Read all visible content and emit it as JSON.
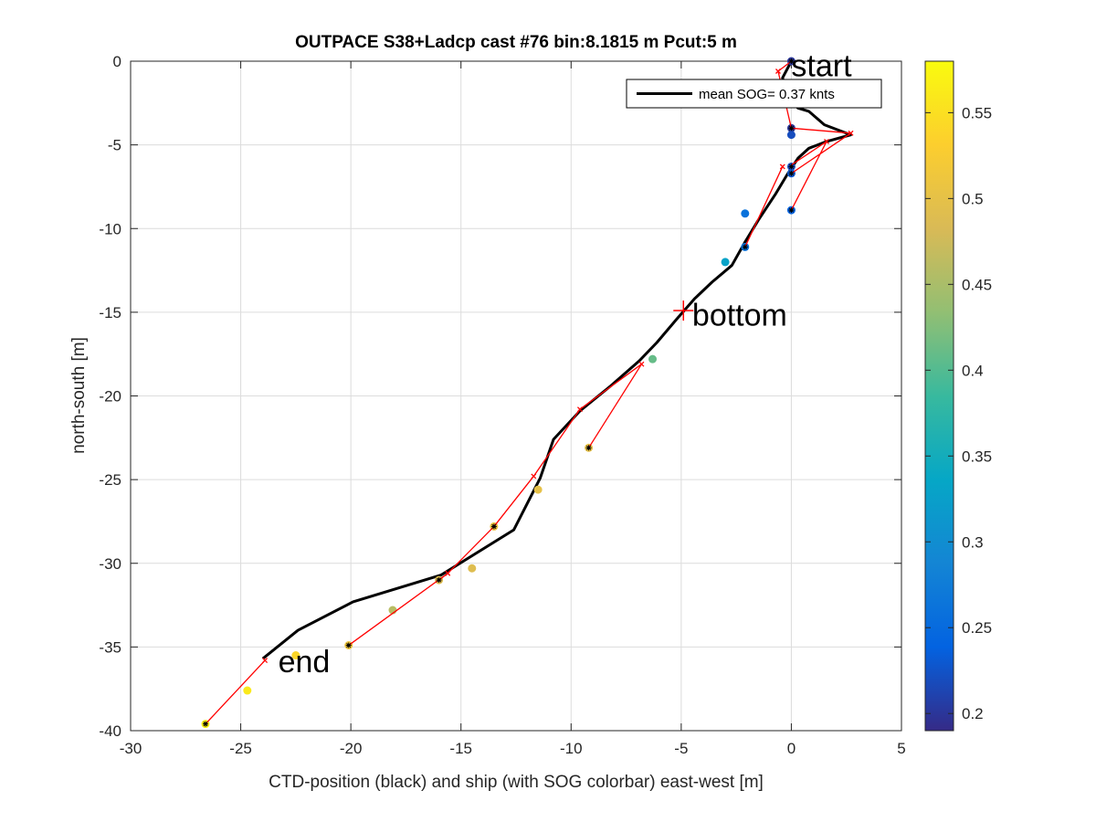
{
  "chart_data": {
    "type": "scatter",
    "title": "OUTPACE S38+Ladcp cast #76 bin:8.1815 m  Pcut:5 m",
    "xlabel": "CTD-position (black) and ship (with SOG colorbar) east-west [m]",
    "ylabel": "north-south [m]",
    "xlim": [
      -30,
      5
    ],
    "ylim": [
      -40,
      0
    ],
    "xticks": [
      -30,
      -25,
      -20,
      -15,
      -10,
      -5,
      0,
      5
    ],
    "yticks": [
      0,
      -5,
      -10,
      -15,
      -20,
      -25,
      -30,
      -35,
      -40
    ],
    "grid": true,
    "legend": {
      "position": "top-right",
      "label": "mean SOG=  0.37 knts"
    },
    "colorbar": {
      "clim": [
        0.19,
        0.58
      ],
      "ticks": [
        0.2,
        0.25,
        0.3,
        0.35,
        0.4,
        0.45,
        0.5,
        0.55
      ],
      "colors": [
        "#352a87",
        "#0363e1",
        "#1485d4",
        "#06a7c6",
        "#38b99e",
        "#92bf73",
        "#d9ba56",
        "#fcce2e",
        "#f9fb0e"
      ]
    },
    "series": [
      {
        "name": "mean SOG=  0.37 knts",
        "style": "line",
        "color": "#000000",
        "x": [
          0.0,
          -0.4,
          -0.1,
          0.3,
          0.8,
          1.5,
          2.7,
          1.6,
          0.8,
          0.3,
          -0.2,
          -0.7,
          -1.5,
          -2.1,
          -2.7,
          -3.6,
          -4.4,
          -5.2,
          -6.1,
          -6.9,
          -8.2,
          -9.6,
          -10.8,
          -11.4,
          -12.6,
          -15.9,
          -19.9,
          -22.4,
          -24.0
        ],
        "y": [
          0.0,
          -1.0,
          -2.3,
          -2.8,
          -3.0,
          -3.8,
          -4.4,
          -4.8,
          -5.2,
          -5.8,
          -6.8,
          -7.9,
          -9.5,
          -10.8,
          -12.2,
          -13.2,
          -14.2,
          -15.4,
          -16.8,
          -17.9,
          -19.4,
          -20.9,
          -22.6,
          -24.9,
          -28.0,
          -30.7,
          -32.3,
          -34.0,
          -35.7
        ]
      },
      {
        "name": "",
        "style": "line",
        "color": "#ff0000",
        "segments": [
          [
            [
              0.0,
              0.0
            ],
            [
              -0.6,
              -0.6
            ]
          ],
          [
            [
              -0.6,
              -0.6
            ],
            [
              0.0,
              -4.0
            ]
          ],
          [
            [
              0.0,
              -4.0
            ],
            [
              2.7,
              -4.3
            ]
          ],
          [
            [
              2.7,
              -4.3
            ],
            [
              0.0,
              -6.7
            ]
          ],
          [
            [
              0.0,
              -6.2
            ],
            [
              1.6,
              -4.8
            ]
          ],
          [
            [
              1.6,
              -4.8
            ],
            [
              0.0,
              -8.9
            ]
          ],
          [
            [
              -2.1,
              -11.1
            ],
            [
              -0.4,
              -6.3
            ]
          ],
          [
            [
              -9.2,
              -23.1
            ],
            [
              -6.8,
              -18.1
            ]
          ],
          [
            [
              -6.8,
              -18.1
            ],
            [
              -9.6,
              -20.8
            ]
          ],
          [
            [
              -9.6,
              -20.8
            ],
            [
              -11.7,
              -24.8
            ]
          ],
          [
            [
              -11.7,
              -24.8
            ],
            [
              -13.5,
              -27.8
            ]
          ],
          [
            [
              -13.5,
              -27.8
            ],
            [
              -15.6,
              -30.6
            ]
          ],
          [
            [
              -15.6,
              -30.6
            ],
            [
              -16.0,
              -31.0
            ]
          ],
          [
            [
              -15.6,
              -30.6
            ],
            [
              -20.1,
              -34.9
            ]
          ],
          [
            [
              -26.6,
              -39.6
            ],
            [
              -23.9,
              -35.8
            ]
          ]
        ],
        "markers": [
          [
            -0.6,
            -0.6
          ],
          [
            2.7,
            -4.3
          ],
          [
            1.6,
            -4.8
          ],
          [
            -0.4,
            -6.3
          ],
          [
            -6.8,
            -18.1
          ],
          [
            -9.6,
            -20.8
          ],
          [
            -11.7,
            -24.8
          ],
          [
            -15.6,
            -30.6
          ],
          [
            -23.9,
            -35.8
          ]
        ]
      },
      {
        "name": "",
        "style": "scatter",
        "points": [
          {
            "x": 0.0,
            "y": 0.0,
            "sog": 0.2,
            "star": true
          },
          {
            "x": 0.0,
            "y": -4.0,
            "sog": 0.2,
            "star": true
          },
          {
            "x": 0.0,
            "y": -4.4,
            "sog": 0.22,
            "star": false
          },
          {
            "x": 0.0,
            "y": -6.3,
            "sog": 0.22,
            "star": true
          },
          {
            "x": 0.0,
            "y": -6.7,
            "sog": 0.23,
            "star": true
          },
          {
            "x": 0.0,
            "y": -8.9,
            "sog": 0.24,
            "star": true
          },
          {
            "x": -2.1,
            "y": -9.1,
            "sog": 0.26,
            "star": false
          },
          {
            "x": -2.1,
            "y": -11.1,
            "sog": 0.26,
            "star": true
          },
          {
            "x": -3.0,
            "y": -12.0,
            "sog": 0.33,
            "star": false
          },
          {
            "x": -6.3,
            "y": -17.8,
            "sog": 0.41,
            "star": false
          },
          {
            "x": -9.2,
            "y": -23.1,
            "sog": 0.5,
            "star": true
          },
          {
            "x": -11.5,
            "y": -25.6,
            "sog": 0.5,
            "star": false
          },
          {
            "x": -13.5,
            "y": -27.8,
            "sog": 0.51,
            "star": true
          },
          {
            "x": -14.5,
            "y": -30.3,
            "sog": 0.49,
            "star": false
          },
          {
            "x": -16.0,
            "y": -31.0,
            "sog": 0.49,
            "star": true
          },
          {
            "x": -18.1,
            "y": -32.8,
            "sog": 0.46,
            "star": false
          },
          {
            "x": -20.1,
            "y": -34.9,
            "sog": 0.51,
            "star": true
          },
          {
            "x": -22.5,
            "y": -35.5,
            "sog": 0.54,
            "star": false
          },
          {
            "x": -24.7,
            "y": -37.6,
            "sog": 0.56,
            "star": false
          },
          {
            "x": -26.6,
            "y": -39.6,
            "sog": 0.57,
            "star": true
          }
        ]
      }
    ],
    "annotations": [
      {
        "text": "start",
        "x": 0.0,
        "y": -0.9
      },
      {
        "text": "bottom",
        "x": -4.5,
        "y": -15.8
      },
      {
        "text": "end",
        "x": -23.3,
        "y": -36.5
      }
    ],
    "bottom_marker": {
      "x": -4.9,
      "y": -14.9
    }
  }
}
